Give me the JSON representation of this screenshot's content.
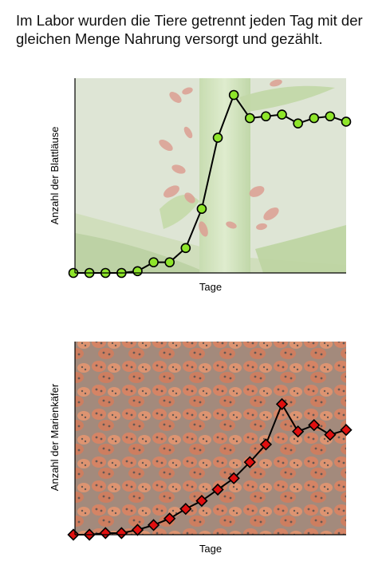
{
  "intro_text": "Im Labor wurden die Tiere getrennt jeden Tag mit der gleichen Menge Nahrung versorgt und gezählt.",
  "colors": {
    "aphid_marker": "#8ee52a",
    "ladybug_marker": "#e01010",
    "line": "#000000",
    "axis": "#000000"
  },
  "chart_data": [
    {
      "type": "line",
      "background": "photo of aphids on a plant stem",
      "xlabel": "Tage",
      "ylabel": "Anzahl der Blattläuse",
      "x_tick_labels": false,
      "y_tick_labels": false,
      "grid": false,
      "marker": "circle",
      "x": [
        1,
        2,
        3,
        4,
        5,
        6,
        7,
        8,
        9,
        10,
        11,
        12,
        13,
        14,
        15,
        16,
        17,
        18
      ],
      "values": [
        0,
        0,
        0,
        0,
        1,
        6,
        6,
        14,
        36,
        76,
        100,
        87,
        88,
        89,
        84,
        87,
        88,
        85
      ],
      "ylim": [
        0,
        100
      ]
    },
    {
      "type": "line",
      "background": "photo of many ladybugs",
      "xlabel": "Tage",
      "ylabel": "Anzahl der Marienkäfer",
      "x_tick_labels": false,
      "y_tick_labels": false,
      "grid": false,
      "marker": "diamond",
      "x": [
        1,
        2,
        3,
        4,
        5,
        6,
        7,
        8,
        9,
        10,
        11,
        12,
        13,
        14,
        15,
        16,
        17,
        18
      ],
      "values": [
        0,
        0,
        1,
        1,
        3,
        6,
        10,
        16,
        21,
        28,
        35,
        45,
        56,
        81,
        64,
        68,
        62,
        65
      ],
      "ylim": [
        0,
        100
      ]
    }
  ]
}
